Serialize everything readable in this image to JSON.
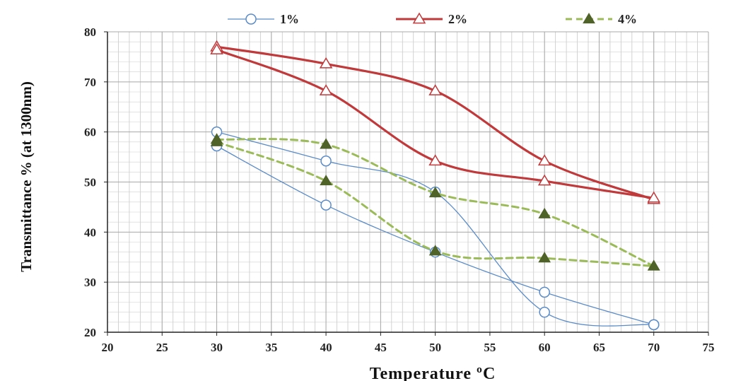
{
  "chart_data": {
    "type": "line",
    "title": "",
    "xlabel": "Temperature   ºC",
    "ylabel": "Transmittance  % (at 1300nm)",
    "xlim": [
      20,
      75
    ],
    "ylim": [
      20,
      80
    ],
    "x_ticks": [
      20,
      25,
      30,
      35,
      40,
      45,
      50,
      55,
      60,
      65,
      70,
      75
    ],
    "y_ticks": [
      20,
      30,
      40,
      50,
      60,
      70,
      80
    ],
    "x_tick_labels": [
      "20",
      "25",
      "30",
      "35",
      "40",
      "45",
      "50",
      "55",
      "60",
      "65",
      "70",
      "75"
    ],
    "y_tick_labels": [
      "20",
      "30",
      "40",
      "50",
      "60",
      "70",
      "80"
    ],
    "grid": true,
    "legend_position": "top",
    "series": [
      {
        "name": "1%",
        "color": "#5b8cc8",
        "marker": "circle",
        "line_style": "solid",
        "curves": [
          {
            "x": [
              30,
              40,
              50,
              60,
              70
            ],
            "y": [
              60,
              54.2,
              48,
              24,
              21.5
            ]
          },
          {
            "x": [
              30,
              40,
              50,
              60,
              70
            ],
            "y": [
              57.2,
              45.4,
              36,
              28,
              21.5
            ]
          }
        ]
      },
      {
        "name": "2%",
        "color": "#c0393b",
        "marker": "triangle",
        "line_style": "solid",
        "curves": [
          {
            "x": [
              30,
              40,
              50,
              60,
              70
            ],
            "y": [
              77,
              73.6,
              68.2,
              54.2,
              46.5
            ]
          },
          {
            "x": [
              30,
              40,
              50,
              60,
              70
            ],
            "y": [
              76.4,
              68.2,
              54.2,
              50.2,
              46.8
            ]
          }
        ]
      },
      {
        "name": "4%",
        "color": "#9bbb59",
        "marker_fill": "#4f6228",
        "marker": "triangle-filled",
        "line_style": "dashed",
        "curves": [
          {
            "x": [
              30,
              40,
              50,
              60,
              70
            ],
            "y": [
              58.5,
              57.5,
              47.8,
              43.6,
              33.2
            ]
          },
          {
            "x": [
              30,
              40,
              50,
              60,
              70
            ],
            "y": [
              58,
              50.2,
              36.2,
              34.8,
              33.2
            ]
          }
        ]
      }
    ]
  }
}
